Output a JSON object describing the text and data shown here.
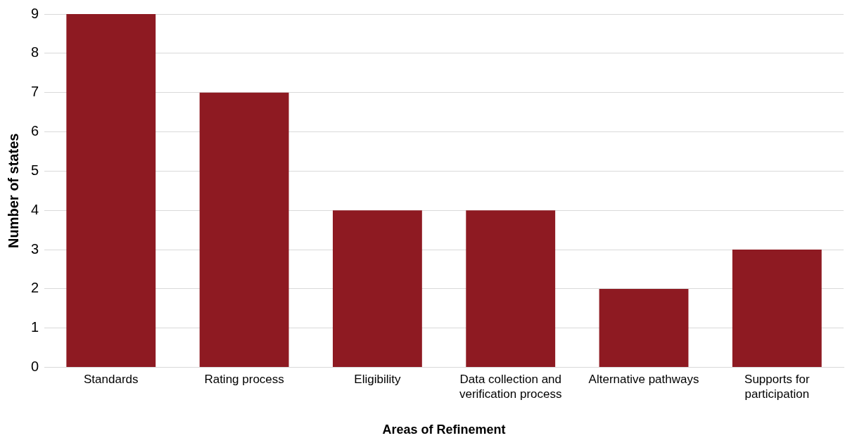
{
  "chart_data": {
    "type": "bar",
    "categories": [
      "Standards",
      "Rating process",
      "Eligibility",
      "Data collection and verification process",
      "Alternative pathways",
      "Supports for participation"
    ],
    "values": [
      9,
      7,
      4,
      4,
      2,
      3
    ],
    "color": "#8e1a22",
    "xlabel": "Areas of Refinement",
    "ylabel": "Number of states",
    "ylim": [
      0,
      9
    ],
    "yticks": [
      0,
      1,
      2,
      3,
      4,
      5,
      6,
      7,
      8,
      9
    ],
    "grid": "y",
    "legend": false
  }
}
